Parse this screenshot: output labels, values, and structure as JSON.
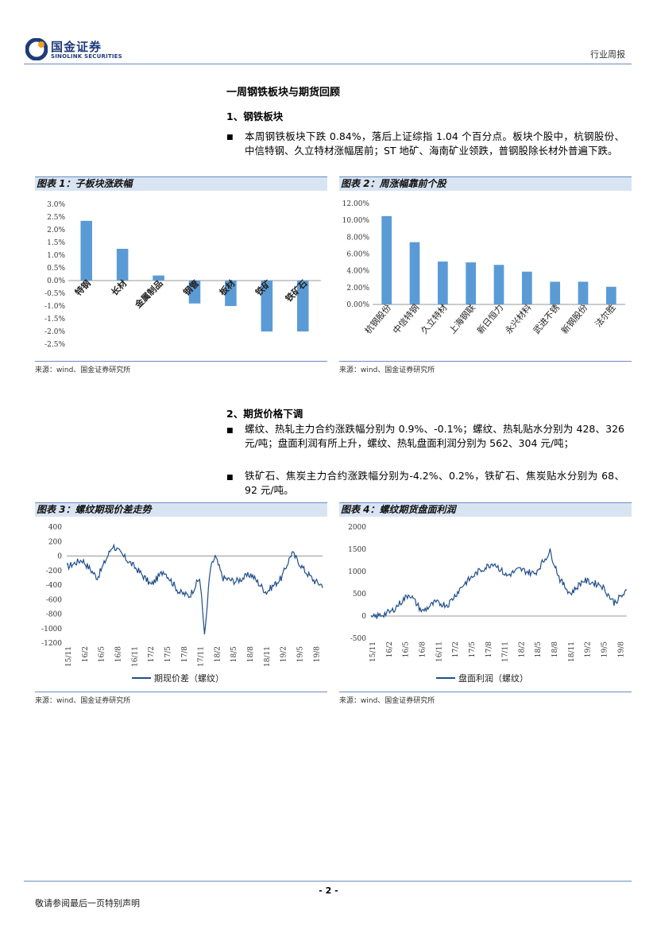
{
  "header": {
    "logo_cn": "国金证券",
    "logo_en": "SINOLINK SECURITIES",
    "report_type": "行业周报"
  },
  "section": {
    "title": "一周钢铁板块与期货回顾",
    "sub1": "1、钢铁板块",
    "para1": "本周钢铁板块下跌 0.84%，落后上证综指 1.04 个百分点。板块个股中，杭钢股份、中信特钢、久立特材涨幅居前；ST 地矿、海南矿业领跌，普钢股除长材外普遍下跌。",
    "sub2": "2、期货价格下调",
    "para2": "螺纹、热轧主力合约涨跌幅分别为 0.9%、-0.1%；螺纹、热轧贴水分别为 428、326 元/吨；盘面利润有所上升，螺纹、热轧盘面利润分别为 562、304 元/吨；",
    "para3": "铁矿石、焦炭主力合约涨跌幅分别为-4.2%、0.2%，铁矿石、焦炭贴水分别为 68、92 元/吨。",
    "bullet": "■"
  },
  "figures": {
    "fig1_title": "图表 1：子板块涨跌幅",
    "fig2_title": "图表 2：周涨幅靠前个股",
    "fig3_title": "图表 3：螺纹期现价差走势",
    "fig4_title": "图表 4：螺纹期货盘面利润",
    "source": "来源：wind、国金证券研究所"
  },
  "footer": {
    "page": "- 2 -",
    "note": "敬请参阅最后一页特别声明"
  },
  "colors": {
    "bar": "#5b9bd5",
    "line": "#1f4e8c",
    "accent": "#1d3b7a",
    "rule": "#6a8cc0"
  },
  "chart_data": [
    {
      "type": "bar",
      "title": "子板块涨跌幅",
      "categories": [
        "特钢",
        "长材",
        "金属制品",
        "钢管",
        "板材",
        "铁矿",
        "铁矿石"
      ],
      "values": [
        2.35,
        1.25,
        0.2,
        -0.9,
        -1.0,
        -2.0,
        -2.0
      ],
      "yticks": [
        "3.0%",
        "2.5%",
        "2.0%",
        "1.5%",
        "1.0%",
        "0.5%",
        "0.0%",
        "-0.5%",
        "-1.0%",
        "-1.5%",
        "-2.0%",
        "-2.5%"
      ],
      "ylim": [
        -2.5,
        3.0
      ]
    },
    {
      "type": "bar",
      "title": "周涨幅靠前个股",
      "categories": [
        "杭钢股份",
        "中信特钢",
        "久立特材",
        "上海钢联",
        "新日恒力",
        "永兴材料",
        "武进不锈",
        "新钢股份",
        "法尔胜"
      ],
      "values": [
        10.5,
        7.4,
        5.1,
        5.0,
        4.7,
        3.9,
        2.7,
        2.7,
        2.1
      ],
      "yticks": [
        "12.00%",
        "10.00%",
        "8.00%",
        "6.00%",
        "4.00%",
        "2.00%",
        "0.00%"
      ],
      "ylim": [
        0,
        12
      ]
    },
    {
      "type": "line",
      "title": "螺纹期现价差走势",
      "series": [
        {
          "name": "期现价差（螺纹）"
        }
      ],
      "xticks": [
        "15/11",
        "16/2",
        "16/5",
        "16/8",
        "16/11",
        "17/2",
        "17/5",
        "17/8",
        "17/11",
        "18/2",
        "18/5",
        "18/8",
        "18/11",
        "19/2",
        "19/5",
        "19/8"
      ],
      "yticks": [
        "400",
        "200",
        "0",
        "-200",
        "-400",
        "-600",
        "-800",
        "-1000",
        "-1200"
      ],
      "ylim": [
        -1200,
        400
      ],
      "x": [
        0,
        0.06,
        0.12,
        0.18,
        0.22,
        0.28,
        0.33,
        0.38,
        0.44,
        0.48,
        0.52,
        0.54,
        0.56,
        0.58,
        0.61,
        0.66,
        0.72,
        0.78,
        0.84,
        0.88,
        0.93,
        0.97,
        1.0
      ],
      "values": [
        -150,
        -50,
        -300,
        150,
        0,
        -200,
        -400,
        -200,
        -500,
        -550,
        -300,
        -1100,
        -200,
        0,
        -300,
        -350,
        -250,
        -500,
        -300,
        50,
        -200,
        -350,
        -400
      ]
    },
    {
      "type": "line",
      "title": "螺纹期货盘面利润",
      "series": [
        {
          "name": "盘面利润（螺纹）"
        }
      ],
      "xticks": [
        "15/11",
        "16/2",
        "16/5",
        "16/8",
        "16/11",
        "17/2",
        "17/5",
        "17/8",
        "17/11",
        "18/2",
        "18/5",
        "18/8",
        "18/11",
        "19/2",
        "19/5",
        "19/8"
      ],
      "yticks": [
        "2000",
        "1500",
        "1000",
        "500",
        "0",
        "-500"
      ],
      "ylim": [
        -500,
        2000
      ],
      "x": [
        0,
        0.08,
        0.15,
        0.2,
        0.25,
        0.3,
        0.36,
        0.42,
        0.48,
        0.53,
        0.58,
        0.64,
        0.7,
        0.74,
        0.78,
        0.83,
        0.9,
        0.95,
        1.0
      ],
      "values": [
        -50,
        100,
        500,
        100,
        300,
        250,
        700,
        1000,
        1200,
        900,
        1050,
        950,
        1450,
        800,
        500,
        800,
        700,
        300,
        550
      ]
    }
  ]
}
